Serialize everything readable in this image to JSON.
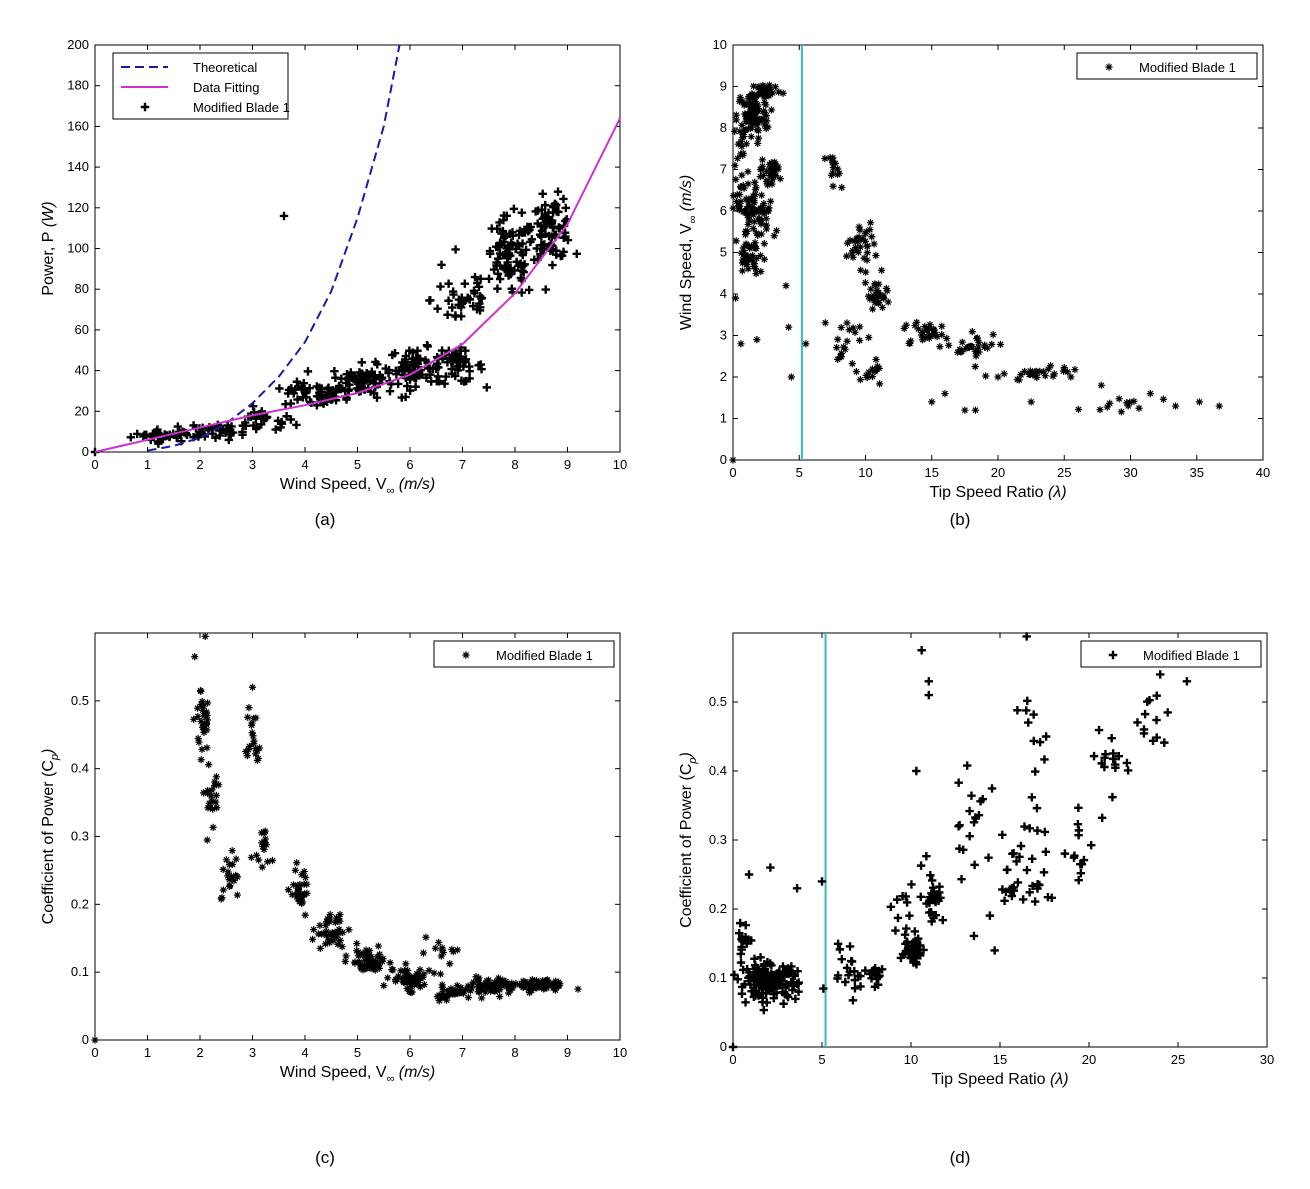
{
  "captions": [
    "(a)",
    "(b)",
    "(c)",
    "(d)"
  ],
  "colors": {
    "theoretical": "#1a1aa6",
    "fit": "#cc33cc",
    "vline": "#33bbcc",
    "marker": "#000000"
  },
  "chart_data": [
    {
      "type": "scatter",
      "panel": "a",
      "xlabel": {
        "main": "Wind Speed, V",
        "sub": "∞",
        "unit": " (m/s)"
      },
      "ylabel": {
        "main": "Power, P",
        "unit": " (W)"
      },
      "xlim": [
        0,
        10
      ],
      "ylim": [
        0,
        200
      ],
      "xticks": [
        "0",
        "1",
        "2",
        "3",
        "4",
        "5",
        "6",
        "7",
        "8",
        "9",
        "10"
      ],
      "yticks": [
        "0",
        "20",
        "40",
        "60",
        "80",
        "100",
        "120",
        "140",
        "160",
        "180",
        "200"
      ],
      "legend": {
        "placement": "top-left",
        "entries": [
          "Theoretical",
          "Data Fitting",
          "Modified Blade 1"
        ]
      },
      "grid": false,
      "series": [
        {
          "name": "Theoretical",
          "style": "dashed",
          "x": [
            1.0,
            1.5,
            2.0,
            2.5,
            3.0,
            3.5,
            4.0,
            4.5,
            5.0,
            5.5,
            5.8
          ],
          "y": [
            0.7,
            3,
            7,
            14,
            24,
            37,
            54,
            79,
            115,
            160,
            200
          ]
        },
        {
          "name": "Data Fitting",
          "style": "line",
          "x": [
            0,
            1,
            2,
            3,
            4,
            5,
            6,
            7,
            8,
            9,
            10
          ],
          "y": [
            0,
            6,
            12,
            18,
            23,
            29,
            38,
            53,
            78,
            112,
            164
          ]
        },
        {
          "name": "Modified Blade 1",
          "style": "marker",
          "clusters": [
            [
              1.3,
              8,
              0.6,
              3,
              28
            ],
            [
              2.3,
              10,
              0.7,
              4,
              40
            ],
            [
              3.2,
              15,
              0.6,
              6,
              25
            ],
            [
              4.2,
              28,
              0.6,
              6,
              45
            ],
            [
              5.1,
              35,
              0.6,
              8,
              80
            ],
            [
              6.1,
              42,
              0.5,
              9,
              70
            ],
            [
              6.9,
              42,
              0.5,
              8,
              45
            ],
            [
              7.0,
              75,
              0.6,
              15,
              35
            ],
            [
              7.9,
              95,
              0.5,
              20,
              90
            ],
            [
              8.7,
              110,
              0.4,
              15,
              80
            ],
            [
              3.8,
              30,
              0.3,
              4,
              8
            ]
          ],
          "points": [
            [
              3.6,
              116
            ],
            [
              0,
              0
            ],
            [
              6.6,
              92
            ]
          ]
        }
      ]
    },
    {
      "type": "scatter",
      "panel": "b",
      "xlabel": {
        "main": "Tip Speed Ratio",
        "unit": " (λ)"
      },
      "ylabel": {
        "main": "Wind Speed, V",
        "sub": "∞",
        "unit": " (m/s)"
      },
      "xlim": [
        0,
        40
      ],
      "ylim": [
        0,
        10
      ],
      "xticks": [
        "0",
        "5",
        "10",
        "15",
        "20",
        "25",
        "30",
        "35",
        "40"
      ],
      "yticks": [
        "0",
        "1",
        "2",
        "3",
        "4",
        "5",
        "6",
        "7",
        "8",
        "9",
        "10"
      ],
      "vline": 5.2,
      "legend": {
        "placement": "top-right",
        "entries": [
          "Modified Blade 1"
        ]
      },
      "grid": false,
      "series": [
        {
          "name": "Modified Blade 1",
          "style": "marker",
          "clusters": [
            [
              1.5,
              8.3,
              1.2,
              0.6,
              80
            ],
            [
              2.5,
              8.9,
              1.2,
              0.2,
              35
            ],
            [
              1.8,
              6.0,
              1.4,
              0.6,
              70
            ],
            [
              1.2,
              4.8,
              1.0,
              0.6,
              40
            ],
            [
              2.8,
              6.9,
              0.8,
              0.3,
              30
            ],
            [
              0.6,
              7.2,
              0.6,
              1.0,
              25
            ],
            [
              7.6,
              7.0,
              0.6,
              0.4,
              15
            ],
            [
              9.5,
              5.2,
              1.2,
              0.6,
              35
            ],
            [
              10.8,
              4.0,
              1.0,
              0.5,
              30
            ],
            [
              8.8,
              2.8,
              1.4,
              0.6,
              20
            ],
            [
              10.5,
              2.1,
              0.8,
              0.3,
              12
            ],
            [
              14.5,
              3.1,
              1.5,
              0.3,
              25
            ],
            [
              18,
              2.7,
              2.0,
              0.3,
              30
            ],
            [
              23,
              2.1,
              2.5,
              0.2,
              25
            ],
            [
              30,
              1.3,
              3.0,
              0.2,
              12
            ]
          ],
          "points": [
            [
              0,
              0
            ],
            [
              0.2,
              3.9
            ],
            [
              0.6,
              2.8
            ],
            [
              1.8,
              2.9
            ],
            [
              4.2,
              3.2
            ],
            [
              4.4,
              2.0
            ],
            [
              5.5,
              2.8
            ],
            [
              4.0,
              4.2
            ],
            [
              16,
              1.6
            ],
            [
              15,
              1.4
            ],
            [
              18.3,
              1.2
            ],
            [
              22.5,
              1.4
            ],
            [
              25.5,
              2.0
            ],
            [
              27.8,
              1.8
            ],
            [
              33.4,
              1.3
            ],
            [
              36.7,
              1.3
            ],
            [
              35.2,
              1.4
            ],
            [
              31.5,
              1.6
            ],
            [
              17.5,
              1.2
            ],
            [
              20,
              2.0
            ]
          ]
        }
      ]
    },
    {
      "type": "scatter",
      "panel": "c",
      "xlabel": {
        "main": "Wind Speed, V",
        "sub": "∞",
        "unit": " (m/s)"
      },
      "ylabel": {
        "main": "Coefficient of Power (C",
        "sub": "p",
        "unit": ")"
      },
      "xlim": [
        0,
        10
      ],
      "ylim": [
        0,
        0.6
      ],
      "xticks": [
        "0",
        "1",
        "2",
        "3",
        "4",
        "5",
        "6",
        "7",
        "8",
        "9",
        "10"
      ],
      "yticks": [
        "0",
        "0.1",
        "0.2",
        "0.3",
        "0.4",
        "0.5"
      ],
      "legend": {
        "placement": "top-right",
        "entries": [
          "Modified Blade 1"
        ]
      },
      "grid": false,
      "series": [
        {
          "name": "Modified Blade 1",
          "style": "marker",
          "clusters": [
            [
              2.05,
              0.48,
              0.12,
              0.06,
              30
            ],
            [
              2.2,
              0.37,
              0.15,
              0.04,
              20
            ],
            [
              2.6,
              0.24,
              0.18,
              0.03,
              20
            ],
            [
              3.0,
              0.44,
              0.12,
              0.06,
              20
            ],
            [
              3.2,
              0.29,
              0.15,
              0.04,
              15
            ],
            [
              3.9,
              0.22,
              0.2,
              0.03,
              30
            ],
            [
              4.5,
              0.16,
              0.3,
              0.025,
              40
            ],
            [
              5.2,
              0.115,
              0.35,
              0.02,
              60
            ],
            [
              6.0,
              0.09,
              0.4,
              0.015,
              60
            ],
            [
              6.8,
              0.07,
              0.4,
              0.01,
              50
            ],
            [
              7.6,
              0.08,
              0.4,
              0.012,
              60
            ],
            [
              8.5,
              0.08,
              0.45,
              0.008,
              60
            ],
            [
              6.6,
              0.13,
              0.4,
              0.015,
              12
            ]
          ],
          "points": [
            [
              0,
              0
            ],
            [
              2.1,
              0.595
            ],
            [
              1.9,
              0.565
            ],
            [
              3.0,
              0.52
            ],
            [
              9.2,
              0.075
            ]
          ]
        }
      ]
    },
    {
      "type": "scatter",
      "panel": "d",
      "xlabel": {
        "main": "Tip Speed Ratio",
        "unit": " (λ)"
      },
      "ylabel": {
        "main": "Coefficient of Power (C",
        "sub": "p",
        "unit": ")"
      },
      "xlim": [
        0,
        30
      ],
      "ylim": [
        0,
        0.6
      ],
      "xticks": [
        "0",
        "5",
        "10",
        "15",
        "20",
        "25",
        "30"
      ],
      "yticks": [
        "0",
        "0.1",
        "0.2",
        "0.3",
        "0.4",
        "0.5"
      ],
      "vline": 5.2,
      "legend": {
        "placement": "top-right",
        "entries": [
          "Modified Blade 1"
        ]
      },
      "grid": false,
      "series": [
        {
          "name": "Modified Blade 1",
          "style": "marker",
          "clusters": [
            [
              2.0,
              0.095,
              1.6,
              0.025,
              160
            ],
            [
              0.6,
              0.15,
              0.4,
              0.03,
              15
            ],
            [
              6.5,
              0.12,
              1.2,
              0.04,
              20
            ],
            [
              8.0,
              0.1,
              0.6,
              0.025,
              18
            ],
            [
              10.2,
              0.14,
              0.6,
              0.02,
              40
            ],
            [
              11.2,
              0.22,
              0.6,
              0.04,
              30
            ],
            [
              9.5,
              0.2,
              0.8,
              0.04,
              12
            ],
            [
              13.5,
              0.33,
              1.0,
              0.1,
              20
            ],
            [
              15.5,
              0.25,
              1.3,
              0.08,
              20
            ],
            [
              17.3,
              0.28,
              1.2,
              0.1,
              20
            ],
            [
              19.5,
              0.28,
              1.0,
              0.06,
              15
            ],
            [
              21.5,
              0.42,
              0.9,
              0.05,
              15
            ],
            [
              23.5,
              0.47,
              1.0,
              0.05,
              12
            ],
            [
              16.5,
              0.47,
              1.0,
              0.04,
              8
            ]
          ],
          "points": [
            [
              0,
              0
            ],
            [
              10.6,
              0.575
            ],
            [
              11.0,
              0.53
            ],
            [
              11.0,
              0.51
            ],
            [
              10.3,
              0.4
            ],
            [
              16.5,
              0.595
            ],
            [
              24.0,
              0.54
            ],
            [
              25.5,
              0.53
            ],
            [
              14.7,
              0.14
            ],
            [
              0.9,
              0.25
            ],
            [
              2.1,
              0.26
            ],
            [
              5.0,
              0.24
            ],
            [
              3.6,
              0.23
            ]
          ]
        }
      ]
    }
  ]
}
